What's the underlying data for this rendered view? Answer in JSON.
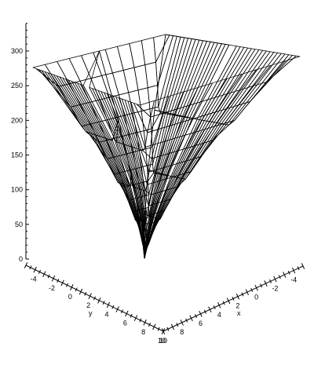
{
  "chart_data": {
    "type": "surface3d",
    "title": "",
    "surface": {
      "form": "paraboloid",
      "z_min": 0,
      "z_max": 325,
      "grid_lines_x": 36,
      "grid_lines_y": 11
    },
    "z_axis": {
      "ticks": [
        0,
        50,
        100,
        150,
        200,
        250,
        300
      ],
      "range": [
        0,
        340
      ]
    },
    "x_axis": {
      "label": "x",
      "ticks": [
        -4,
        -2,
        0,
        2,
        4,
        6,
        8,
        10
      ],
      "range": [
        -5,
        10
      ]
    },
    "y_axis": {
      "label": "y",
      "ticks": [
        -4,
        -2,
        0,
        2,
        4,
        6,
        8,
        10
      ],
      "range": [
        -5,
        10
      ]
    },
    "box": false,
    "grid": false,
    "legend": false,
    "line_color": "#000000",
    "background": "#ffffff"
  }
}
